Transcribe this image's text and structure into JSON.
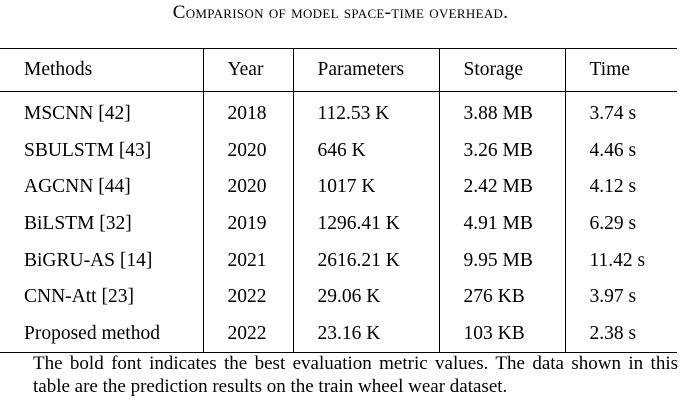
{
  "caption": "Comparison of model space-time overhead.",
  "table": {
    "headers": [
      "Methods",
      "Year",
      "Parameters",
      "Storage",
      "Time"
    ],
    "rows": [
      {
        "method": "MSCNN [42]",
        "year": "2018",
        "parameters": "112.53 K",
        "storage": "3.88 MB",
        "time": "3.74 s"
      },
      {
        "method": "SBULSTM [43]",
        "year": "2020",
        "parameters": "646 K",
        "storage": "3.26 MB",
        "time": "4.46 s"
      },
      {
        "method": "AGCNN [44]",
        "year": "2020",
        "parameters": "1017 K",
        "storage": "2.42 MB",
        "time": "4.12 s"
      },
      {
        "method": "BiLSTM [32]",
        "year": "2019",
        "parameters": "1296.41 K",
        "storage": "4.91 MB",
        "time": "6.29 s"
      },
      {
        "method": "BiGRU-AS [14]",
        "year": "2021",
        "parameters": "2616.21 K",
        "storage": "9.95 MB",
        "time": "11.42 s"
      },
      {
        "method": "CNN-Att [23]",
        "year": "2022",
        "parameters": "29.06 K",
        "storage": "276 KB",
        "time": "3.97 s"
      },
      {
        "method": "Proposed method",
        "year": "2022",
        "parameters": "23.16 K",
        "storage": "103 KB",
        "time": "2.38 s"
      }
    ]
  },
  "note": "The bold font indicates the best evaluation metric values. The data shown in this table are the prediction results on the train wheel wear dataset."
}
